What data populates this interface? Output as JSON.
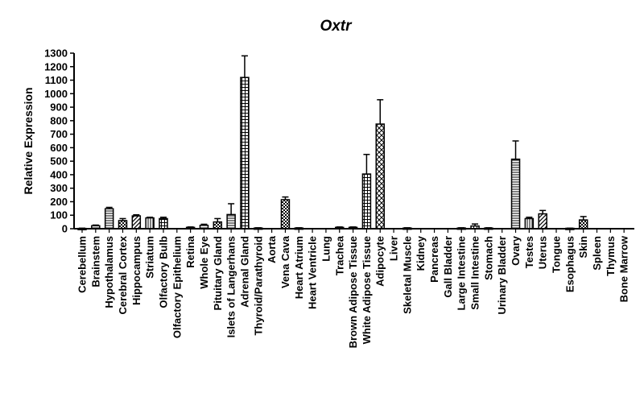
{
  "chart_data": {
    "type": "bar",
    "title": "Oxtr",
    "xlabel": "",
    "ylabel": "Relative Expression",
    "ylim": [
      0,
      1300
    ],
    "yticks": [
      0,
      100,
      200,
      300,
      400,
      500,
      600,
      700,
      800,
      900,
      1000,
      1100,
      1200,
      1300
    ],
    "grid": false,
    "categories": [
      "Cerebellum",
      "Brainstem",
      "Hypothalamus",
      "Cerebral Cortex",
      "Hippocampus",
      "Striatum",
      "Olfactory Bulb",
      "Olfactory Epithelium",
      "Retina",
      "Whole Eye",
      "Pituitary Gland",
      "Islets of Langerhans",
      "Adrenal Gland",
      "Thyroid/Parathyroid",
      "Aorta",
      "Vena Cava",
      "Heart Atrium",
      "Heart Ventricle",
      "Lung",
      "Trachea",
      "Brown Adipose Tissue",
      "White Adipose Tissue",
      "Adipocyte",
      "Liver",
      "Skeletal Muscle",
      "Kidney",
      "Pancreas",
      "Gall Bladder",
      "Large Intestine",
      "Small Intestine",
      "Stomach",
      "Urinary Bladder",
      "Ovary",
      "Testes",
      "Uterus",
      "Tongue",
      "Esophagus",
      "Skin",
      "Spleen",
      "Thymus",
      "Bone Marrow"
    ],
    "values": [
      2,
      22,
      148,
      60,
      95,
      80,
      75,
      0,
      10,
      25,
      50,
      105,
      1120,
      5,
      0,
      215,
      5,
      0,
      0,
      10,
      10,
      405,
      775,
      0,
      5,
      0,
      0,
      0,
      5,
      20,
      5,
      0,
      515,
      75,
      110,
      0,
      3,
      65,
      0,
      0,
      0
    ],
    "errors": [
      2,
      5,
      10,
      15,
      8,
      5,
      10,
      0,
      3,
      8,
      25,
      80,
      160,
      2,
      0,
      20,
      2,
      0,
      0,
      3,
      3,
      145,
      180,
      0,
      2,
      0,
      0,
      0,
      2,
      15,
      2,
      0,
      135,
      10,
      25,
      0,
      1,
      25,
      0,
      0,
      0
    ],
    "patterns": [
      "dense",
      "hlines",
      "hlines",
      "checker",
      "diag",
      "vlines",
      "grid",
      "dense",
      "dense",
      "hlines",
      "checker",
      "hlines",
      "grid",
      "dense",
      "dense",
      "checker",
      "dense",
      "dense",
      "dense",
      "dense",
      "grid",
      "grid",
      "crossdiag",
      "dense",
      "hlines",
      "dense",
      "dense",
      "dense",
      "dense",
      "grid",
      "dense",
      "dense",
      "hlines",
      "vlines",
      "diag",
      "dense",
      "dense",
      "checker",
      "dense",
      "dense",
      "dense"
    ]
  }
}
